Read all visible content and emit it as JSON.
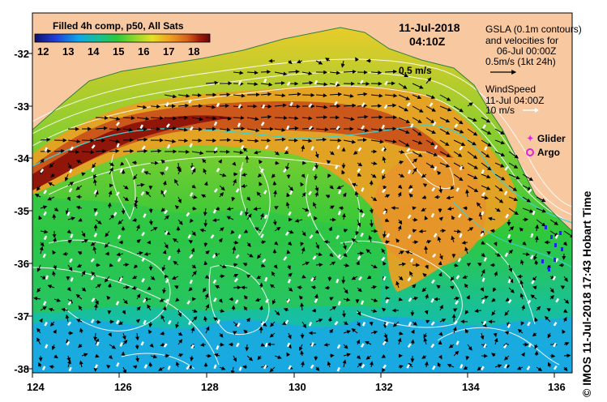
{
  "colorbar": {
    "title": "Filled 4h comp, p50, All Sats",
    "ticks": [
      "12",
      "13",
      "14",
      "15",
      "16",
      "17",
      "18"
    ],
    "colors": [
      "#10106e",
      "#1f3fd9",
      "#10a6e8",
      "#18c090",
      "#2ec83a",
      "#8fd62b",
      "#e6e021",
      "#f0a020",
      "#d8621a",
      "#a01c0a",
      "#6a0606"
    ]
  },
  "timestamp": {
    "date": "11-Jul-2018",
    "time": "04:10Z"
  },
  "gsla_legend": {
    "line1": "GSLA (0.1m contours)",
    "line2": "and velocities for",
    "line3": "06-Jul 00:00Z",
    "line4": "0.5m/s (1kt 24h)"
  },
  "current_label": "0.5 m/s",
  "wind_legend": {
    "line1": "WindSpeed",
    "line2": "11-Jul 04:00Z",
    "line3": "10 m/s"
  },
  "markers": {
    "glider": "Glider",
    "argo": "Argo"
  },
  "credit": "© IMOS 11-Jul-2018 17:43 Hobart Time",
  "axes": {
    "x_ticks": [
      "124",
      "126",
      "128",
      "130",
      "132",
      "134",
      "136"
    ],
    "y_ticks": [
      "-32",
      "-33",
      "-34",
      "-35",
      "-36",
      "-37",
      "-38"
    ]
  },
  "colors": {
    "land": "#f8c8a0",
    "frame": "#000000",
    "contour": "#ffffff",
    "isobath": "#40d0d0"
  }
}
